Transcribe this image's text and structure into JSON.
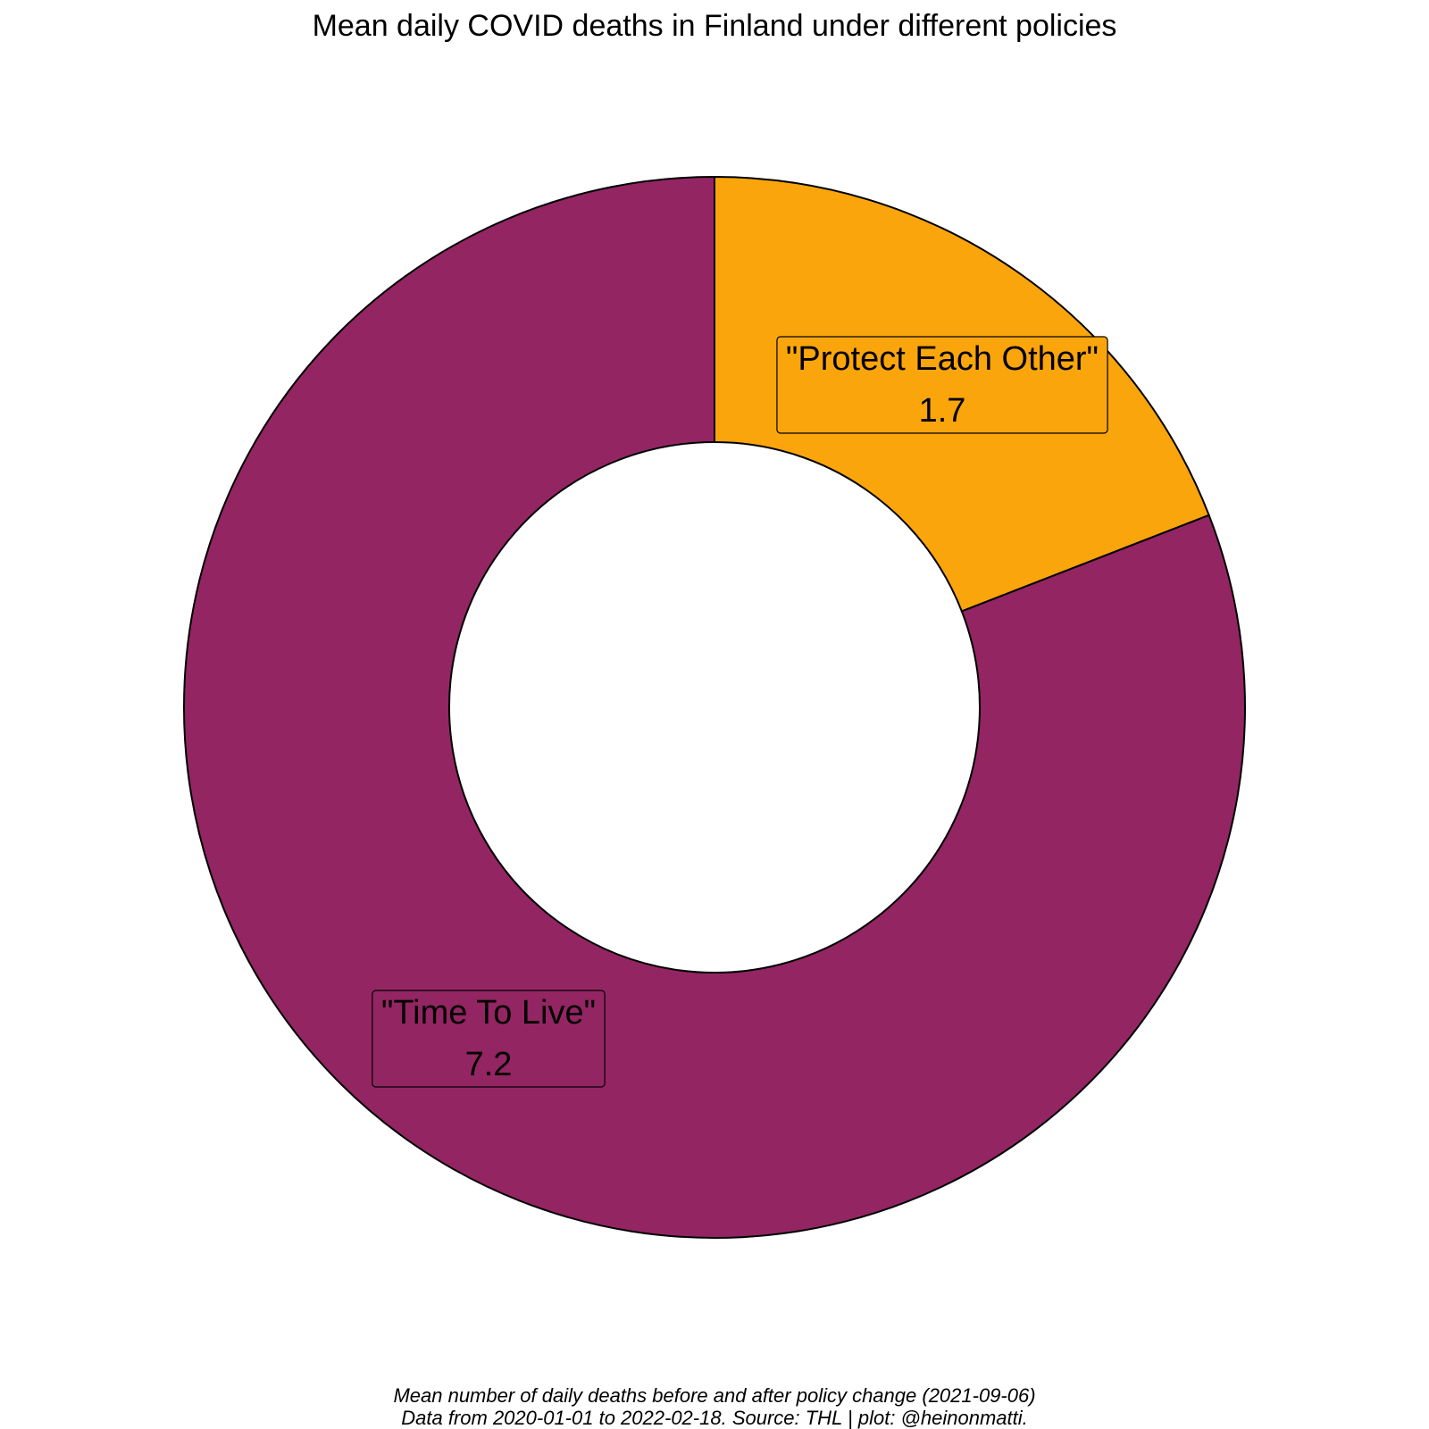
{
  "chart_data": {
    "type": "pie",
    "donut": true,
    "title": "Mean daily COVID deaths in Finland under different policies",
    "slices": [
      {
        "label": "\"Protect Each Other\"",
        "value": 1.7,
        "value_label": "1.7",
        "color": "#FAA50C"
      },
      {
        "label": "\"Time To Live\"",
        "value": 7.2,
        "value_label": "7.2",
        "color": "#932563"
      }
    ],
    "start": "top",
    "direction": "clockwise",
    "legend": "none"
  },
  "caption": {
    "line1": "Mean number of daily deaths before and after policy change (2021-09-06)",
    "line2": "Data from 2020-01-01 to 2022-02-18. Source: THL | plot: @heinonmatti."
  }
}
